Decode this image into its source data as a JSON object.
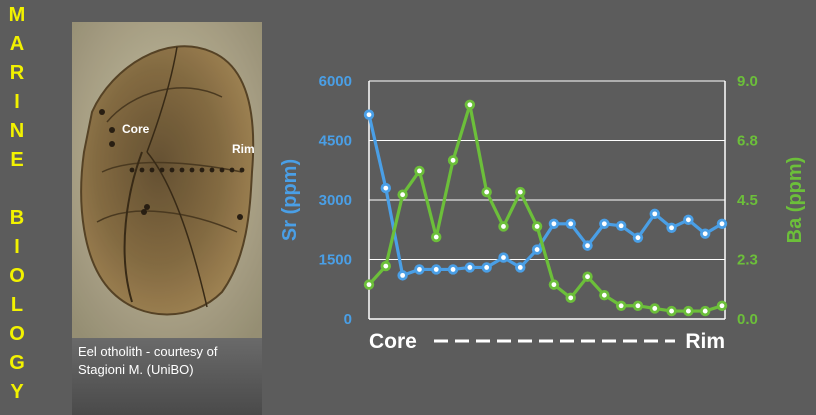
{
  "side_title": {
    "letters": [
      "M",
      "A",
      "R",
      "I",
      "N",
      "E",
      "",
      "B",
      "I",
      "O",
      "L",
      "O",
      "G",
      "Y"
    ]
  },
  "photo": {
    "core_label": "Core",
    "rim_label": "Rim"
  },
  "caption": {
    "line1": "Eel otholith - courtesy of",
    "line2": "Stagioni M. (UniBO)"
  },
  "colors": {
    "sr": "#4a9fe6",
    "ba": "#6cbf3a",
    "background": "#5c5c5c",
    "side_title": "#f2f200"
  },
  "chart_data": {
    "type": "line",
    "title": "",
    "xlabel": "",
    "x_category_labels": {
      "start": "Core",
      "end": "Rim",
      "connector": "— — — — — — — — — — —"
    },
    "y_left": {
      "label": "Sr (ppm)",
      "ylim": [
        0,
        6000
      ],
      "ticks": [
        "0",
        "1500",
        "3000",
        "4500",
        "6000"
      ]
    },
    "y_right": {
      "label": "Ba (ppm)",
      "ylim": [
        0,
        9
      ],
      "ticks": [
        "0.0",
        "2.3",
        "4.5",
        "6.8",
        "9.0"
      ]
    },
    "grid": true,
    "n_points": 22,
    "series": [
      {
        "name": "Sr (ppm)",
        "axis": "left",
        "values": [
          5150,
          3300,
          1100,
          1250,
          1250,
          1250,
          1300,
          1300,
          1550,
          1300,
          1750,
          2400,
          2400,
          1850,
          2400,
          2350,
          2050,
          2650,
          2300,
          2500,
          2150,
          2400
        ]
      },
      {
        "name": "Ba (ppm)",
        "axis": "right",
        "values": [
          1.3,
          2.0,
          4.7,
          5.6,
          3.1,
          6.0,
          8.1,
          4.8,
          3.5,
          4.8,
          3.5,
          1.3,
          0.8,
          1.6,
          0.9,
          0.5,
          0.5,
          0.4,
          0.3,
          0.3,
          0.3,
          0.5
        ]
      }
    ]
  }
}
